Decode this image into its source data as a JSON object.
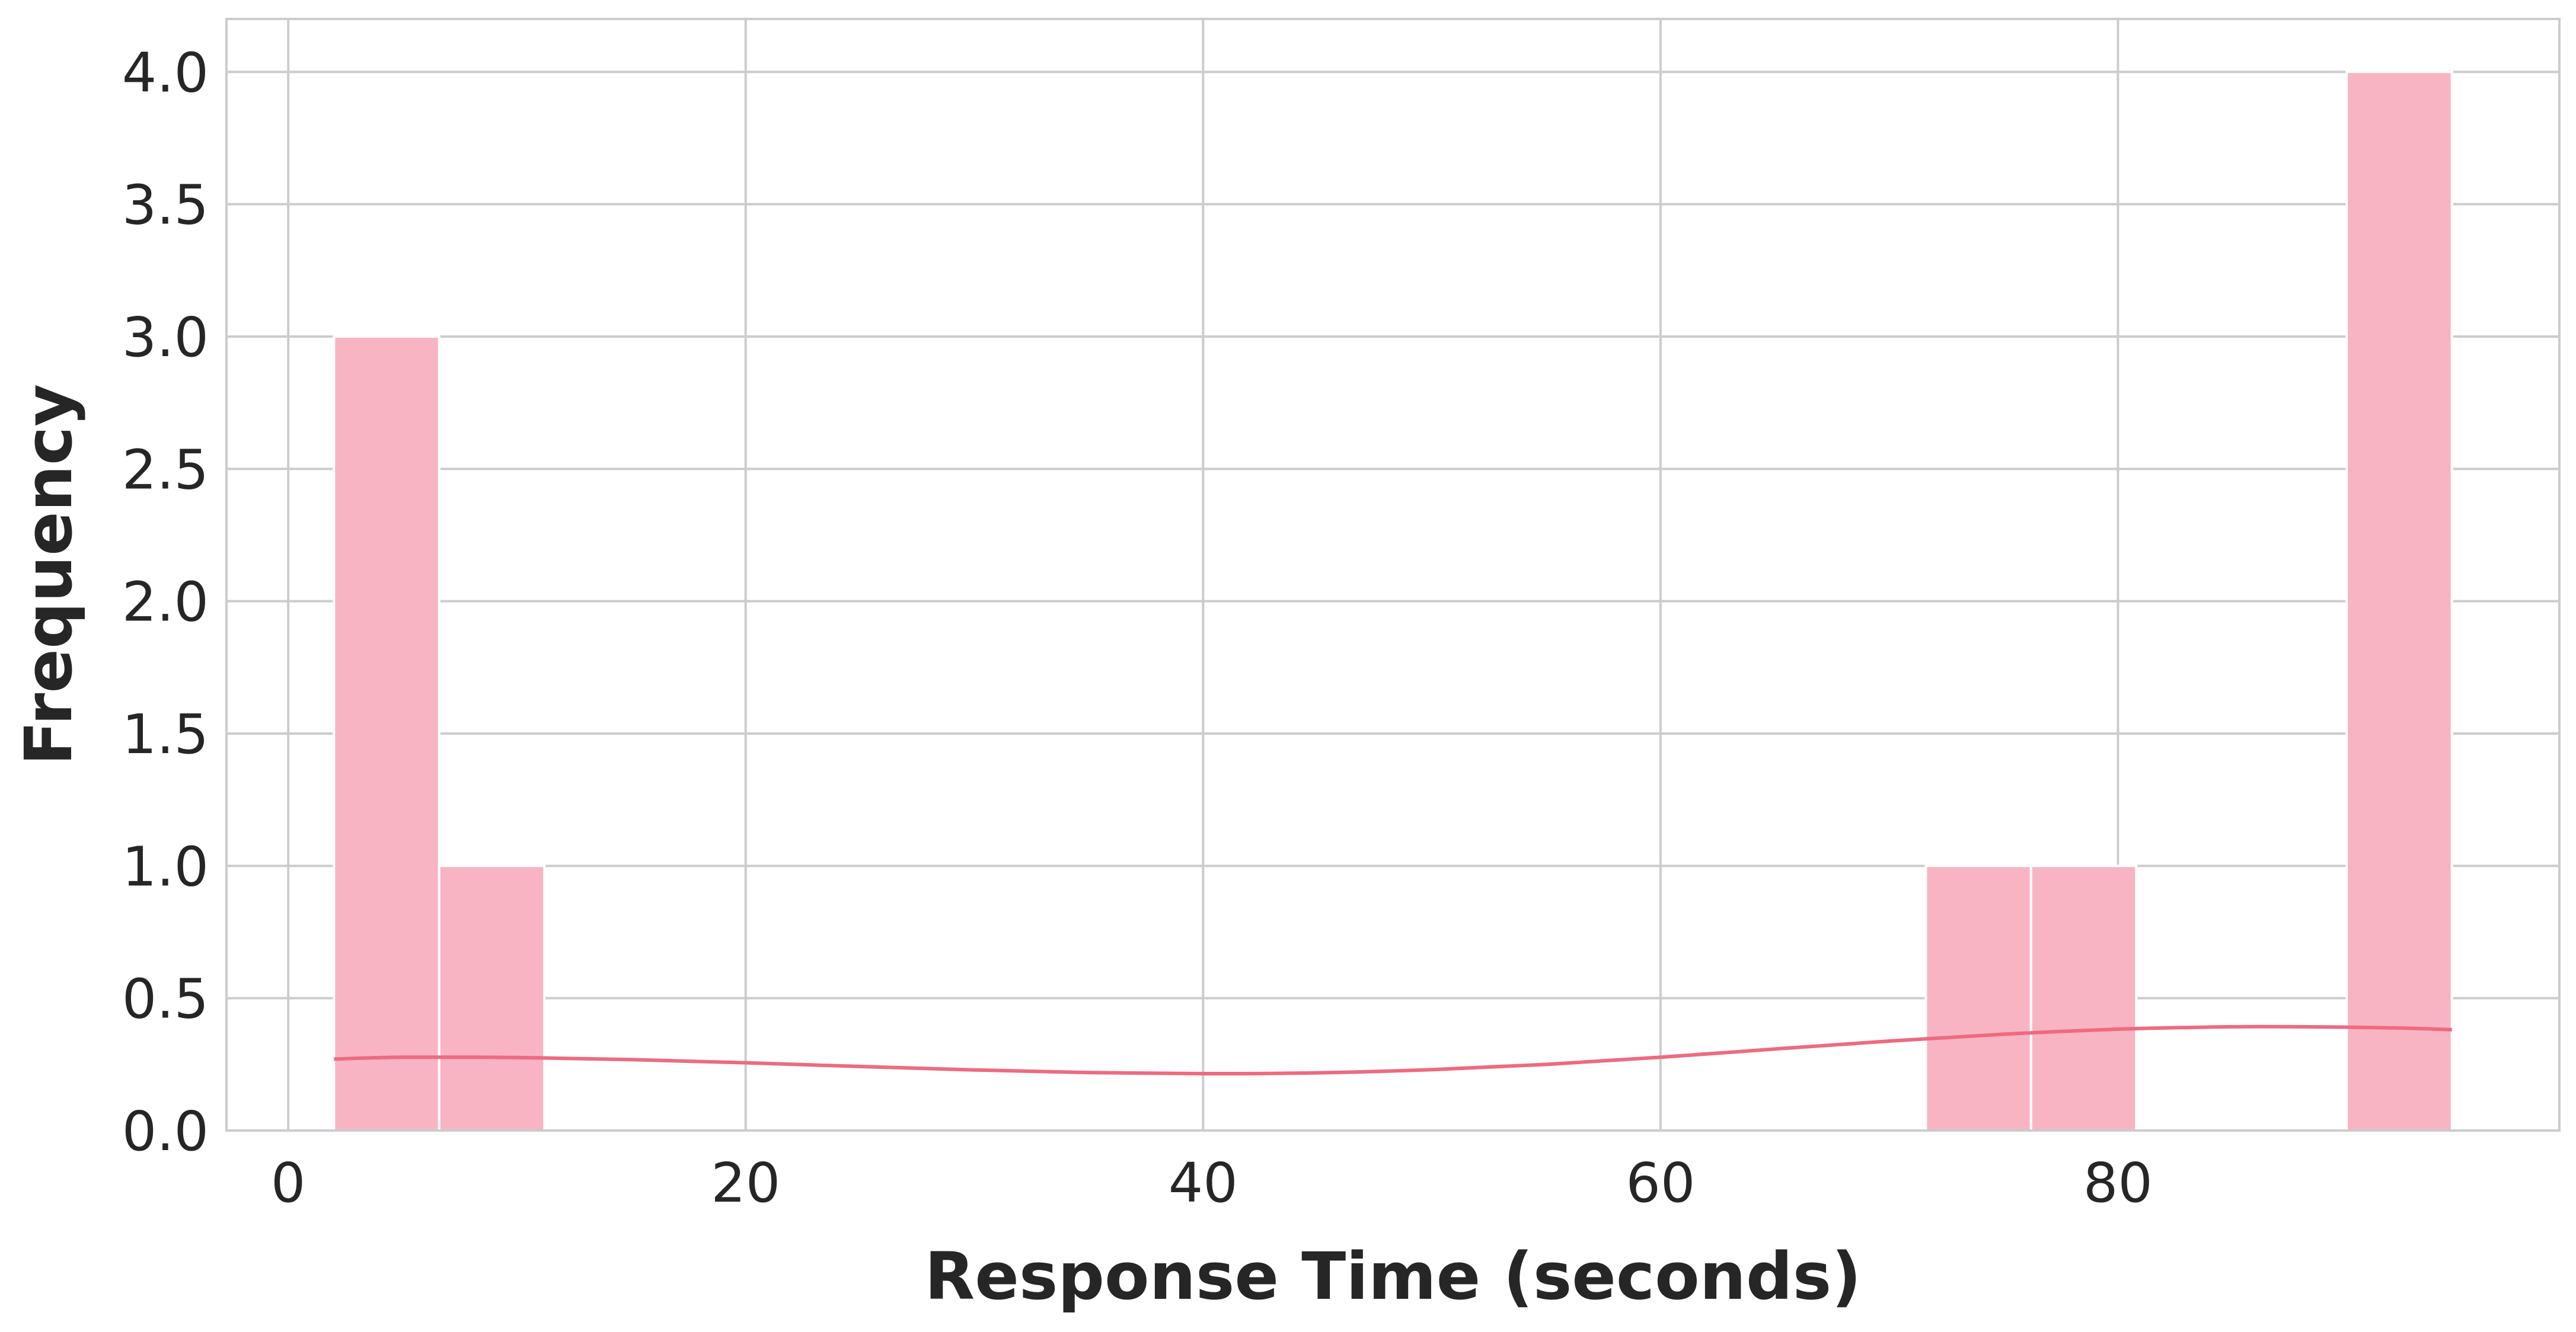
{
  "chart_data": {
    "type": "bar",
    "subtype": "histogram-with-kde",
    "title": "",
    "xlabel": "Response Time (seconds)",
    "ylabel": "Frequency",
    "xlim": [
      -2.7,
      99.3
    ],
    "ylim": [
      0,
      4.2
    ],
    "x_ticks": [
      0,
      20,
      40,
      60,
      80
    ],
    "x_tick_labels": [
      "0",
      "20",
      "40",
      "60",
      "80"
    ],
    "y_ticks": [
      0,
      0.5,
      1.0,
      1.5,
      2.0,
      2.5,
      3.0,
      3.5,
      4.0
    ],
    "y_tick_labels": [
      "0.0",
      "0.5",
      "1.0",
      "1.5",
      "2.0",
      "2.5",
      "3.0",
      "3.5",
      "4.0"
    ],
    "grid": true,
    "legend": "none",
    "bar_color": "#f8b4c3",
    "line_color": "#ee6a80",
    "bins": [
      {
        "x0": 2.0,
        "x1": 6.6,
        "count": 3
      },
      {
        "x0": 6.6,
        "x1": 11.2,
        "count": 1
      },
      {
        "x0": 71.6,
        "x1": 76.2,
        "count": 1
      },
      {
        "x0": 76.2,
        "x1": 80.8,
        "count": 1
      },
      {
        "x0": 90.0,
        "x1": 94.6,
        "count": 4
      }
    ],
    "kde_line": {
      "x": [
        2,
        5,
        10,
        15,
        20,
        25,
        30,
        35,
        40,
        45,
        50,
        55,
        60,
        65,
        70,
        75,
        80,
        85,
        88,
        92,
        94.6
      ],
      "y": [
        0.27,
        0.277,
        0.276,
        0.268,
        0.256,
        0.242,
        0.229,
        0.219,
        0.215,
        0.218,
        0.23,
        0.25,
        0.277,
        0.308,
        0.338,
        0.364,
        0.383,
        0.392,
        0.392,
        0.388,
        0.381
      ]
    }
  }
}
